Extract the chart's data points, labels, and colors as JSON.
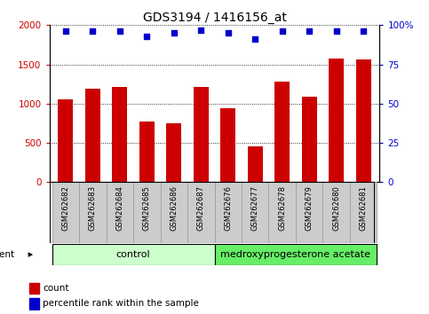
{
  "title": "GDS3194 / 1416156_at",
  "categories": [
    "GSM262682",
    "GSM262683",
    "GSM262684",
    "GSM262685",
    "GSM262686",
    "GSM262687",
    "GSM262676",
    "GSM262677",
    "GSM262678",
    "GSM262679",
    "GSM262680",
    "GSM262681"
  ],
  "counts": [
    1050,
    1190,
    1210,
    770,
    750,
    1215,
    940,
    450,
    1280,
    1090,
    1570,
    1560
  ],
  "percentile_ranks": [
    96,
    96,
    96,
    93,
    95,
    97,
    95,
    91,
    96,
    96,
    96,
    96
  ],
  "bar_color": "#cc0000",
  "dot_color": "#0000cc",
  "left_ylim": [
    0,
    2000
  ],
  "right_ylim": [
    0,
    100
  ],
  "left_yticks": [
    0,
    500,
    1000,
    1500,
    2000
  ],
  "right_yticks": [
    0,
    25,
    50,
    75,
    100
  ],
  "right_yticklabels": [
    "0",
    "25",
    "50",
    "75",
    "100%"
  ],
  "control_label": "control",
  "treatment_label": "medroxyprogesterone acetate",
  "agent_label": "agent",
  "legend_count_label": "count",
  "legend_percentile_label": "percentile rank within the sample",
  "control_bg_color": "#ccffcc",
  "treatment_bg_color": "#66ee66",
  "xticklabel_bg_color": "#cccccc",
  "title_fontsize": 10,
  "tick_fontsize": 7.5,
  "label_fontsize": 8,
  "bar_width": 0.55,
  "n_control": 6,
  "n_treatment": 6
}
